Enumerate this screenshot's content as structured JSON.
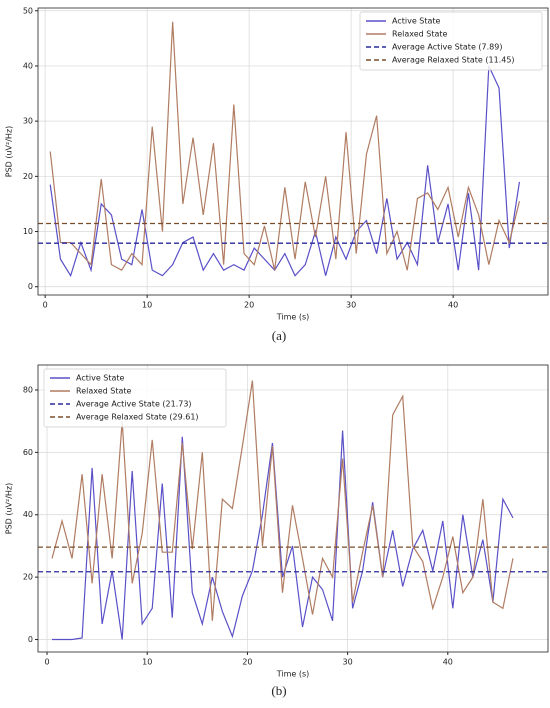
{
  "chart_data": [
    {
      "type": "line",
      "caption": "(a)",
      "xlabel": "Time (s)",
      "ylabel": "PSD (uV²/Hz)",
      "x": [
        0.5,
        1.5,
        2.5,
        3.5,
        4.5,
        5.5,
        6.5,
        7.5,
        8.5,
        9.5,
        10.5,
        11.5,
        12.5,
        13.5,
        14.5,
        15.5,
        16.5,
        17.5,
        18.5,
        19.5,
        20.5,
        21.5,
        22.5,
        23.5,
        24.5,
        25.5,
        26.5,
        27.5,
        28.5,
        29.5,
        30.5,
        31.5,
        32.5,
        33.5,
        34.5,
        35.5,
        36.5,
        37.5,
        38.5,
        39.5,
        40.5,
        41.5,
        42.5,
        43.5,
        44.5,
        45.5,
        46.5
      ],
      "series": [
        {
          "name": "Active State",
          "color": "#5a50c8",
          "values": [
            18.5,
            5,
            2,
            8,
            3,
            15,
            13,
            5,
            4,
            14,
            3,
            2,
            4,
            8,
            9,
            3,
            6,
            3,
            4,
            3,
            7,
            5,
            3,
            6,
            2,
            4,
            10,
            2,
            9,
            5,
            10,
            12,
            6,
            16,
            5,
            8,
            4,
            22,
            8,
            15,
            3,
            17,
            3,
            40,
            36,
            7,
            19
          ]
        },
        {
          "name": "Relaxed State",
          "color": "#b07c62",
          "values": [
            24.5,
            8,
            8,
            6,
            4,
            19.5,
            4,
            3,
            6,
            4,
            29,
            10,
            48,
            15,
            27,
            13,
            26,
            4,
            33,
            6,
            4,
            11,
            3,
            18,
            5,
            19,
            9,
            20,
            5,
            28,
            6,
            24,
            31,
            6,
            10,
            3,
            16,
            17,
            14,
            18,
            9,
            18,
            13,
            4,
            12,
            8,
            15.5
          ]
        }
      ],
      "hlines": [
        {
          "name": "Average Active State (7.89)",
          "value": 7.89,
          "color": "#2a2a9a"
        },
        {
          "name": "Average Relaxed State (11.45)",
          "value": 11.45,
          "color": "#7a4e2a"
        }
      ],
      "xlim": [
        -0.7,
        49.3
      ],
      "ylim": [
        -1.5,
        50.5
      ],
      "xticks": [
        0,
        10,
        20,
        30,
        40
      ],
      "yticks": [
        0,
        10,
        20,
        30,
        40,
        50
      ],
      "grid": true,
      "legend": "upper right"
    },
    {
      "type": "line",
      "caption": "(b)",
      "xlabel": "Time (s)",
      "ylabel": "PSD (uV²/Hz)",
      "x": [
        0.5,
        1.5,
        2.5,
        3.5,
        4.5,
        5.5,
        6.5,
        7.5,
        8.5,
        9.5,
        10.5,
        11.5,
        12.5,
        13.5,
        14.5,
        15.5,
        16.5,
        17.5,
        18.5,
        19.5,
        20.5,
        21.5,
        22.5,
        23.5,
        24.5,
        25.5,
        26.5,
        27.5,
        28.5,
        29.5,
        30.5,
        31.5,
        32.5,
        33.5,
        34.5,
        35.5,
        36.5,
        37.5,
        38.5,
        39.5,
        40.5,
        41.5,
        42.5,
        43.5,
        44.5,
        45.5,
        46.5
      ],
      "series": [
        {
          "name": "Active State",
          "color": "#5a50c8",
          "values": [
            0,
            0,
            0,
            0.5,
            55,
            5,
            22,
            0,
            54,
            5,
            10,
            50,
            7,
            65,
            15,
            5,
            20,
            9,
            1,
            14,
            22,
            40,
            63,
            20,
            30,
            4,
            20,
            16,
            6,
            67,
            10,
            22,
            44,
            20,
            35,
            17,
            29,
            35,
            22,
            38,
            10,
            40,
            20,
            32,
            12,
            45,
            39
          ]
        },
        {
          "name": "Relaxed State",
          "color": "#b07c62",
          "values": [
            26,
            38,
            26,
            53,
            18,
            53,
            26,
            70,
            18,
            34,
            64,
            28,
            28,
            63,
            29,
            60,
            6,
            45,
            42,
            62,
            83,
            30,
            62,
            15,
            43,
            26,
            8,
            26,
            20,
            58,
            12,
            28,
            43,
            20,
            72,
            78,
            30,
            25,
            10,
            20,
            33,
            15,
            20,
            45,
            12,
            10,
            26
          ]
        }
      ],
      "hlines": [
        {
          "name": "Average Active State (21.73)",
          "value": 21.73,
          "color": "#2a2a9a"
        },
        {
          "name": "Average Relaxed State (29.61)",
          "value": 29.61,
          "color": "#7a4e2a"
        }
      ],
      "xlim": [
        -0.9,
        50
      ],
      "ylim": [
        -4,
        88
      ],
      "xticks": [
        0,
        10,
        20,
        30,
        40
      ],
      "yticks": [
        0,
        20,
        40,
        60,
        80
      ],
      "grid": true,
      "legend": "upper left"
    }
  ]
}
